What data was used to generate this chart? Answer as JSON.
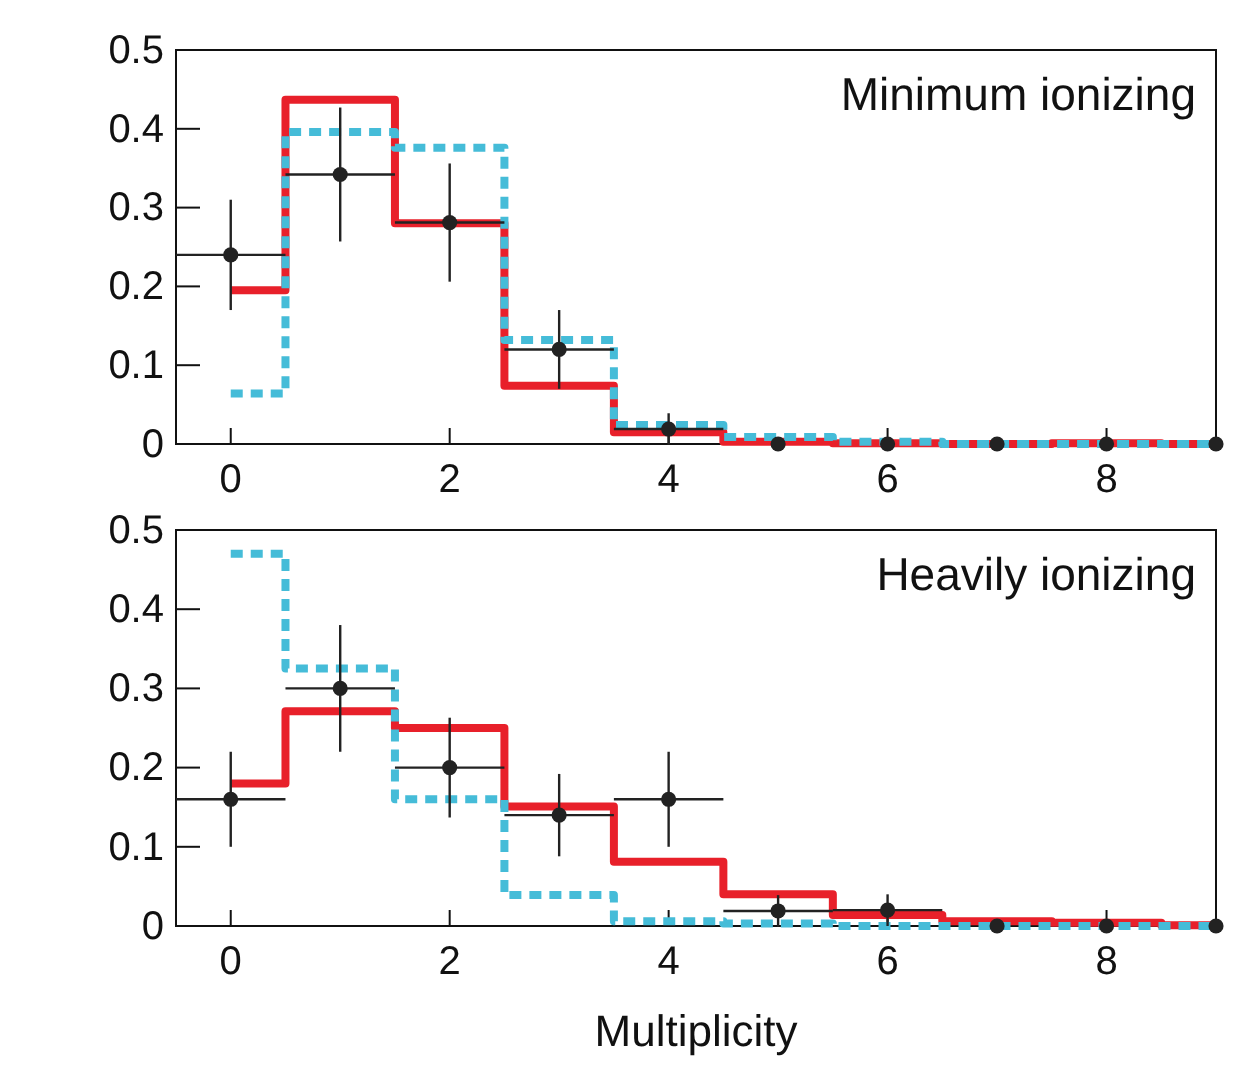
{
  "chart_data": [
    {
      "type": "step",
      "annotations": [
        "Minimum ionizing"
      ],
      "x": [
        0,
        1,
        2,
        3,
        4,
        5,
        6,
        7,
        8,
        9
      ],
      "xlim": [
        -0.5,
        9
      ],
      "xticks": [
        0,
        2,
        4,
        6,
        8
      ],
      "ylim": [
        0,
        0.5
      ],
      "yticks": [
        0,
        0.1,
        0.2,
        0.3,
        0.4,
        0.5
      ],
      "grid": false,
      "series": [
        {
          "color": "#e8202a",
          "line_style": "solid",
          "values": [
            0.195,
            0.437,
            0.28,
            0.074,
            0.015,
            0.003,
            0.001,
            0,
            0.001,
            0
          ]
        },
        {
          "color": "#45bcd8",
          "line_style": "dashed",
          "values": [
            0.064,
            0.396,
            0.376,
            0.132,
            0.024,
            0.009,
            0.003,
            0,
            0,
            0
          ]
        },
        {
          "type": "scatter",
          "color": "#222222",
          "marker": "circle",
          "values": [
            0.24,
            0.342,
            0.281,
            0.12,
            0.019,
            0,
            0,
            0,
            0,
            0
          ],
          "errors": [
            0.07,
            0.085,
            0.075,
            0.05,
            0.02,
            null,
            null,
            null,
            null,
            null
          ],
          "xerrors": [
            0.5,
            0.5,
            0.5,
            0.5,
            0.5,
            null,
            null,
            null,
            null,
            null
          ]
        }
      ]
    },
    {
      "type": "step",
      "annotations": [
        "Heavily ionizing"
      ],
      "xlabel": "Multiplicity",
      "x": [
        0,
        1,
        2,
        3,
        4,
        5,
        6,
        7,
        8,
        9
      ],
      "xlim": [
        -0.5,
        9
      ],
      "xticks": [
        0,
        2,
        4,
        6,
        8
      ],
      "ylim": [
        0,
        0.5
      ],
      "yticks": [
        0,
        0.1,
        0.2,
        0.3,
        0.4,
        0.5
      ],
      "grid": false,
      "series": [
        {
          "color": "#e8202a",
          "line_style": "solid",
          "values": [
            0.18,
            0.271,
            0.25,
            0.151,
            0.081,
            0.04,
            0.014,
            0.006,
            0.004,
            0.001
          ]
        },
        {
          "color": "#45bcd8",
          "line_style": "dashed",
          "values": [
            0.47,
            0.325,
            0.16,
            0.039,
            0.006,
            0.003,
            0,
            0,
            0,
            0
          ]
        },
        {
          "type": "scatter",
          "color": "#222222",
          "marker": "circle",
          "values": [
            0.16,
            0.3,
            0.2,
            0.14,
            0.16,
            0.019,
            0.02,
            0,
            0,
            0
          ],
          "errors": [
            0.06,
            0.08,
            0.063,
            0.052,
            0.06,
            0.02,
            0.02,
            null,
            null,
            null
          ],
          "xerrors": [
            0.5,
            0.5,
            0.5,
            0.5,
            0.5,
            0.5,
            0.5,
            null,
            null,
            null
          ]
        }
      ]
    }
  ]
}
